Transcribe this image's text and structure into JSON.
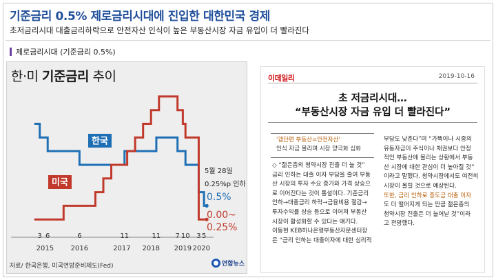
{
  "header": {
    "title": "기준금리 0.5% 제로금리시대에 진입한 대한민국 경제",
    "subtitle": "초저금리시대 대출금리하락으로 안전자산 인식이 높은 부동산시장 자금 유입이 더 빨라진다"
  },
  "section": {
    "label": "제로금리시대 (기준금리 0.5%)",
    "accent": "#6b3fa0"
  },
  "chart_card": {
    "title_prefix": "한·미 ",
    "title_bold": "기준금리",
    "title_suffix": " 추이",
    "source_note": "자료/ 한국은행, 미국연방준비제도(Fed)",
    "logo_text": "연합뉴스"
  },
  "chart_data": {
    "type": "line",
    "title": "한·미 기준금리 추이",
    "x_month_ticks": [
      "3",
      "6",
      "6",
      "11",
      "11",
      "7",
      "10",
      "3",
      "5"
    ],
    "x_year_ticks": [
      "2015",
      "2016",
      "2017",
      "2018",
      "2019",
      "2020"
    ],
    "series": [
      {
        "name": "한국",
        "color": "#1f6fb5",
        "points": [
          [
            "2015-01",
            2.0
          ],
          [
            "2015-03",
            1.75
          ],
          [
            "2015-06",
            1.5
          ],
          [
            "2016-06",
            1.25
          ],
          [
            "2017-11",
            1.5
          ],
          [
            "2018-11",
            1.75
          ],
          [
            "2019-07",
            1.5
          ],
          [
            "2019-10",
            1.25
          ],
          [
            "2020-03",
            0.75
          ],
          [
            "2020-05",
            0.5
          ]
        ]
      },
      {
        "name": "미국",
        "color": "#c0392b",
        "points": [
          [
            "2015-01",
            0.25
          ],
          [
            "2015-12",
            0.5
          ],
          [
            "2016-12",
            0.75
          ],
          [
            "2017-03",
            1.0
          ],
          [
            "2017-06",
            1.25
          ],
          [
            "2017-12",
            1.5
          ],
          [
            "2018-03",
            1.75
          ],
          [
            "2018-06",
            2.0
          ],
          [
            "2018-09",
            2.25
          ],
          [
            "2018-12",
            2.5
          ],
          [
            "2019-07",
            2.25
          ],
          [
            "2019-09",
            2.0
          ],
          [
            "2019-10",
            1.75
          ],
          [
            "2020-03",
            0.25
          ],
          [
            "2020-05",
            0.25
          ]
        ]
      }
    ],
    "annotations": {
      "date": "5월 28일",
      "cut": "0.25%p 인하",
      "korea_value": "0.5%",
      "us_value": "0.00~",
      "us_value2": "0.25%"
    }
  },
  "clip": {
    "brand": "이데일리",
    "date": "2019-10-16",
    "headline1": "초 저금리시대…",
    "headline2": "“부동산시장 자금 유입 더 빨라진다”",
    "box_line1": "'갭단편 부동산=안전자산'",
    "box_line2": "인식 자금 몰리며 시장 양극화 심화",
    "left_col": [
      "◇ “젊은층의 청약시장 진출 더 늘 것”",
      "금리 인하는 대출 이자 부담을 줄여 부동",
      "산 시장의 투자 수요 증가와 가격 상승으",
      "로 이어진다는 것이 통설이다. 기준금리",
      "인하→대출금리 하락→금융비용 절감→",
      "투자수익률 상승 등으로 이어져 부동산",
      "시장이 활성화할 수 있다는 얘기다.",
      "이동현 KEB하나은행부동산자문센터장",
      "은 “금리 인하는 대출이자에 대한 심리적"
    ],
    "right_col": [
      "부담도 낮춘다”며 “가뜩이나 시중의",
      "유동자금이 주식이나 채권보다 안정",
      "적인 부동산에 몰리는 상황에서 부동",
      "산 시장에 대한 관심이 더 높아질 것”",
      "이라고 말했다. 청약시장에서도 여전히",
      "시장이 몰릴 것으로 예상된다.",
      "또한, 금리 인하로 중도금 대출 이자",
      "도 더 떨어지게 되는 만큼 젊은층의",
      "청약시장 진출은 더 늘어날 것”이라",
      "고 전망했다."
    ]
  }
}
